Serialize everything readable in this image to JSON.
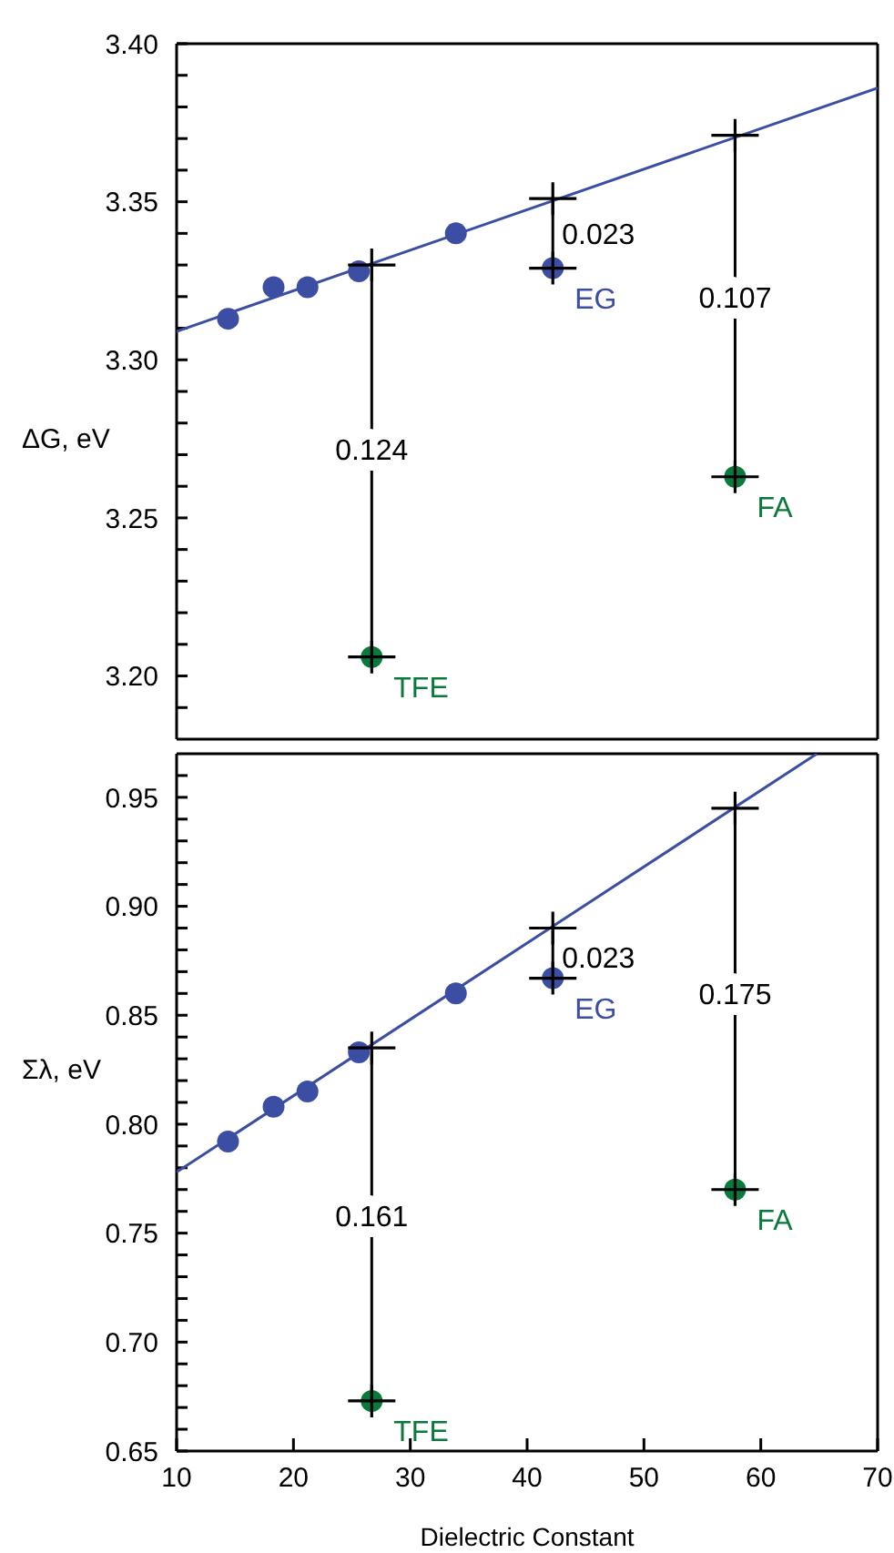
{
  "chart_data": [
    {
      "type": "scatter",
      "ylabel": "ΔG, eV",
      "xlim": [
        10,
        70
      ],
      "xticks": [
        10,
        20,
        30,
        40,
        50,
        60,
        70
      ],
      "ylim": [
        3.18,
        3.4
      ],
      "yticks": [
        {
          "value": 3.19,
          "label": null
        },
        {
          "value": 3.2,
          "label": "3.20"
        },
        {
          "value": 3.21,
          "label": null
        },
        {
          "value": 3.22,
          "label": null
        },
        {
          "value": 3.23,
          "label": null
        },
        {
          "value": 3.24,
          "label": null
        },
        3.25,
        {
          "value": 3.26,
          "label": null
        },
        {
          "value": 3.27,
          "label": null
        },
        {
          "value": 3.28,
          "label": null
        },
        {
          "value": 3.29,
          "label": null
        },
        {
          "value": 3.3,
          "label": "3.30"
        },
        {
          "value": 3.31,
          "label": null
        },
        {
          "value": 3.32,
          "label": null
        },
        {
          "value": 3.33,
          "label": null
        },
        {
          "value": 3.34,
          "label": null
        },
        3.35,
        {
          "value": 3.36,
          "label": null
        },
        {
          "value": 3.37,
          "label": null
        },
        {
          "value": 3.38,
          "label": null
        },
        {
          "value": 3.39,
          "label": null
        },
        {
          "value": 3.4,
          "label": "3.40"
        }
      ],
      "tick_labels": "y",
      "series": [
        {
          "type": "line",
          "color": "#3b4ea3",
          "marker": "none",
          "x": [
            10,
            70
          ],
          "values": [
            3.309,
            3.386
          ]
        },
        {
          "type": "line",
          "color": "#000000",
          "marker": "none",
          "x": [
            26.7,
            26.7
          ],
          "values": [
            3.206,
            3.33
          ]
        },
        {
          "type": "line",
          "color": "#000000",
          "marker": "none",
          "x": [
            42.2,
            42.2
          ],
          "values": [
            3.329,
            3.351
          ]
        },
        {
          "type": "line",
          "color": "#000000",
          "marker": "none",
          "x": [
            57.8,
            57.8
          ],
          "values": [
            3.263,
            3.371
          ]
        },
        {
          "color": "#3b4ea3",
          "marker": "circle",
          "x": [
            14.4,
            18.3,
            21.2,
            25.6,
            33.9,
            42.2
          ],
          "values": [
            3.313,
            3.323,
            3.323,
            3.328,
            3.34,
            3.329
          ]
        },
        {
          "color": "#0a7a3c",
          "marker": "circle",
          "x": [
            26.7,
            57.8
          ],
          "values": [
            3.206,
            3.263
          ]
        },
        {
          "color": "#000000",
          "marker": "cross",
          "x": [
            26.7,
            26.7,
            42.2,
            42.2,
            57.8,
            57.8
          ],
          "values": [
            3.206,
            3.33,
            3.329,
            3.351,
            3.263,
            3.371
          ]
        }
      ],
      "annotations": [
        {
          "text": "EG",
          "x": 42.2,
          "y": 3.329
        },
        {
          "text": "TFE",
          "x": 26.7,
          "y": 3.206
        },
        {
          "text": "FA",
          "x": 57.8,
          "y": 3.263
        },
        {
          "text": "0.023",
          "x": 42.2,
          "y": 3.34
        },
        {
          "text": "0.124",
          "x": 26.7,
          "y": 3.272
        },
        {
          "text": "0.107",
          "x": 57.8,
          "y": 3.32
        }
      ]
    },
    {
      "type": "scatter",
      "ylabel": "Σλ, eV",
      "xlabel": "Dielectric Constant",
      "xlim": [
        10,
        70
      ],
      "xticks": [
        10,
        20,
        30,
        40,
        50,
        60,
        70
      ],
      "ylim": [
        0.65,
        0.97
      ],
      "yticks": [
        0.65,
        {
          "value": 0.66,
          "label": null
        },
        {
          "value": 0.67,
          "label": null
        },
        {
          "value": 0.68,
          "label": null
        },
        {
          "value": 0.69,
          "label": null
        },
        {
          "value": 0.7,
          "label": "0.70"
        },
        {
          "value": 0.71,
          "label": null
        },
        {
          "value": 0.72,
          "label": null
        },
        {
          "value": 0.73,
          "label": null
        },
        {
          "value": 0.74,
          "label": null
        },
        0.75,
        {
          "value": 0.76,
          "label": null
        },
        {
          "value": 0.77,
          "label": null
        },
        {
          "value": 0.78,
          "label": null
        },
        {
          "value": 0.79,
          "label": null
        },
        {
          "value": 0.8,
          "label": "0.80"
        },
        {
          "value": 0.81,
          "label": null
        },
        {
          "value": 0.82,
          "label": null
        },
        {
          "value": 0.83,
          "label": null
        },
        {
          "value": 0.84,
          "label": null
        },
        0.85,
        {
          "value": 0.86,
          "label": null
        },
        {
          "value": 0.87,
          "label": null
        },
        {
          "value": 0.88,
          "label": null
        },
        {
          "value": 0.89,
          "label": null
        },
        {
          "value": 0.9,
          "label": "0.90"
        },
        {
          "value": 0.91,
          "label": null
        },
        {
          "value": 0.92,
          "label": null
        },
        {
          "value": 0.93,
          "label": null
        },
        {
          "value": 0.94,
          "label": null
        },
        0.95,
        {
          "value": 0.96,
          "label": null
        }
      ],
      "series": [
        {
          "type": "line",
          "color": "#3b4ea3",
          "marker": "none",
          "x": [
            10,
            64.8
          ],
          "values": [
            0.778,
            0.97
          ]
        },
        {
          "type": "line",
          "color": "#000000",
          "marker": "none",
          "x": [
            26.7,
            26.7
          ],
          "values": [
            0.673,
            0.835
          ]
        },
        {
          "type": "line",
          "color": "#000000",
          "marker": "none",
          "x": [
            42.2,
            42.2
          ],
          "values": [
            0.867,
            0.89
          ]
        },
        {
          "type": "line",
          "color": "#000000",
          "marker": "none",
          "x": [
            57.8,
            57.8
          ],
          "values": [
            0.77,
            0.945
          ]
        },
        {
          "color": "#3b4ea3",
          "marker": "circle",
          "x": [
            14.4,
            18.3,
            21.2,
            25.6,
            33.9,
            42.2
          ],
          "values": [
            0.792,
            0.808,
            0.815,
            0.833,
            0.86,
            0.867
          ]
        },
        {
          "color": "#0a7a3c",
          "marker": "circle",
          "x": [
            26.7,
            57.8
          ],
          "values": [
            0.673,
            0.77
          ]
        },
        {
          "color": "#000000",
          "marker": "cross",
          "x": [
            26.7,
            26.7,
            42.2,
            42.2,
            57.8,
            57.8
          ],
          "values": [
            0.673,
            0.835,
            0.867,
            0.89,
            0.77,
            0.945
          ]
        }
      ],
      "annotations": [
        {
          "text": "EG",
          "x": 42.2,
          "y": 0.867
        },
        {
          "text": "TFE",
          "x": 26.7,
          "y": 0.673
        },
        {
          "text": "FA",
          "x": 57.8,
          "y": 0.77
        },
        {
          "text": "0.023",
          "x": 42.2,
          "y": 0.877
        },
        {
          "text": "0.161",
          "x": 26.7,
          "y": 0.758
        },
        {
          "text": "0.175",
          "x": 57.8,
          "y": 0.86
        }
      ]
    }
  ]
}
